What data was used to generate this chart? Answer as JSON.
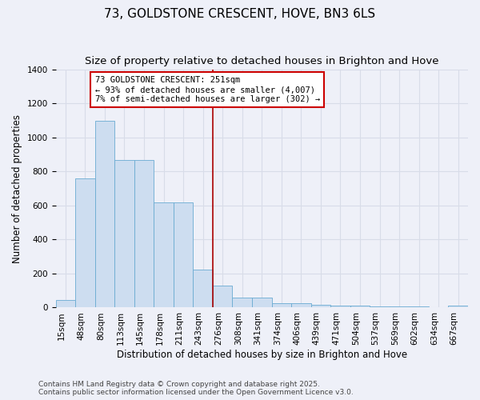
{
  "title": "73, GOLDSTONE CRESCENT, HOVE, BN3 6LS",
  "subtitle": "Size of property relative to detached houses in Brighton and Hove",
  "xlabel": "Distribution of detached houses by size in Brighton and Hove",
  "ylabel": "Number of detached properties",
  "categories": [
    "15sqm",
    "48sqm",
    "80sqm",
    "113sqm",
    "145sqm",
    "178sqm",
    "211sqm",
    "243sqm",
    "276sqm",
    "308sqm",
    "341sqm",
    "374sqm",
    "406sqm",
    "439sqm",
    "471sqm",
    "504sqm",
    "537sqm",
    "569sqm",
    "602sqm",
    "634sqm",
    "667sqm"
  ],
  "values": [
    45,
    760,
    1100,
    870,
    870,
    620,
    620,
    225,
    130,
    60,
    60,
    25,
    25,
    15,
    12,
    10,
    5,
    5,
    8,
    0,
    12
  ],
  "bar_color": "#cdddf0",
  "bar_edgecolor": "#6aabd2",
  "vline_color": "#aa0000",
  "annotation_text": "73 GOLDSTONE CRESCENT: 251sqm\n← 93% of detached houses are smaller (4,007)\n7% of semi-detached houses are larger (302) →",
  "annotation_box_edgecolor": "#cc0000",
  "annotation_box_facecolor": "white",
  "ylim": [
    0,
    1400
  ],
  "background_color": "#eef0f8",
  "grid_color": "#d8dce8",
  "footnote": "Contains HM Land Registry data © Crown copyright and database right 2025.\nContains public sector information licensed under the Open Government Licence v3.0.",
  "title_fontsize": 11,
  "subtitle_fontsize": 9.5,
  "axis_label_fontsize": 8.5,
  "tick_fontsize": 7.5,
  "annotation_fontsize": 7.5,
  "footnote_fontsize": 6.5
}
